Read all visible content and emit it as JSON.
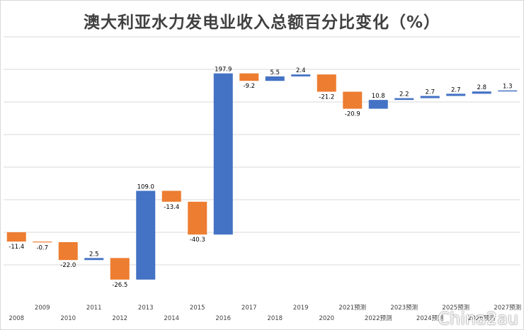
{
  "chart_data": {
    "type": "bar",
    "subtype": "waterfall",
    "title": "澳大利亚水力发电业收入总额百分比变化（%）",
    "xlabel": "",
    "ylabel": "",
    "categories": [
      "2008",
      "2009",
      "2010",
      "2011",
      "2012",
      "2013",
      "2014",
      "2015",
      "2016",
      "2017",
      "2018",
      "2019",
      "2020",
      "2021预测",
      "2022预测",
      "2023预测",
      "2024预测",
      "2025预测",
      "2026预测",
      "2027预测"
    ],
    "values": [
      -11.4,
      -0.7,
      -22.0,
      2.5,
      -26.5,
      109.0,
      -13.4,
      -40.3,
      197.9,
      -9.2,
      5.5,
      2.4,
      -21.2,
      -20.9,
      10.8,
      2.2,
      2.7,
      2.7,
      2.8,
      1.3
    ],
    "ylim": [
      -80,
      240
    ],
    "grid": true,
    "legend": "none",
    "colors": {
      "increase": "#4472c4",
      "decrease": "#ed7d31",
      "gridline": "#d9d9d9",
      "text": "#404040"
    }
  },
  "watermark": "China2au"
}
